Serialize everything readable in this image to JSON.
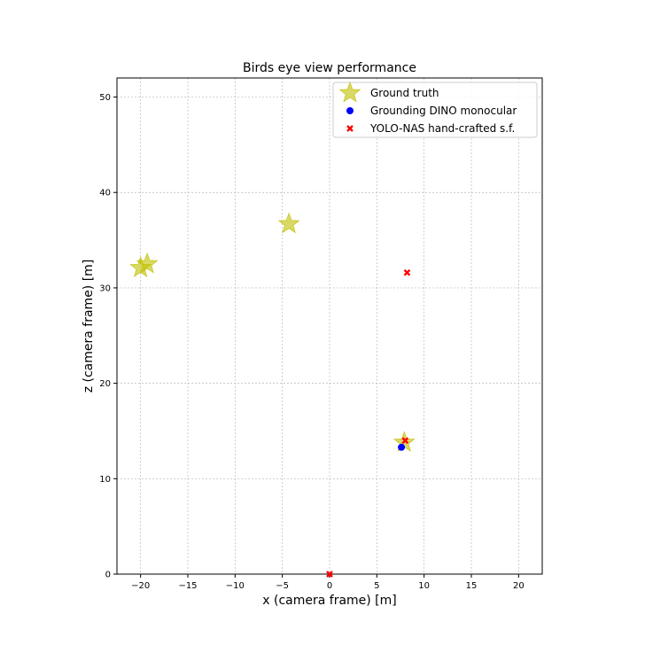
{
  "chart_data": {
    "type": "scatter",
    "title": "Birds eye view performance",
    "xlabel": "x (camera frame) [m]",
    "ylabel": "z (camera frame) [m]",
    "xlim": [
      -22.5,
      22.5
    ],
    "ylim": [
      0,
      52
    ],
    "xticks": [
      -20,
      -15,
      -10,
      -5,
      0,
      5,
      10,
      15,
      20
    ],
    "yticks": [
      0,
      10,
      20,
      30,
      40,
      50
    ],
    "grid": true,
    "legend_position": "top-right",
    "series": [
      {
        "name": "Ground truth",
        "marker": "star",
        "color": "#bfbf00",
        "points": [
          {
            "x": -20.0,
            "y": 32.1
          },
          {
            "x": -19.3,
            "y": 32.5
          },
          {
            "x": -4.3,
            "y": 36.7
          },
          {
            "x": 7.9,
            "y": 13.8
          }
        ]
      },
      {
        "name": "Grounding DINO monocular",
        "marker": "circle",
        "color": "#0000ff",
        "points": [
          {
            "x": 7.6,
            "y": 13.3
          }
        ]
      },
      {
        "name": "YOLO-NAS hand-crafted s.f.",
        "marker": "x",
        "color": "#ff0000",
        "points": [
          {
            "x": 8.2,
            "y": 31.6
          },
          {
            "x": 8.0,
            "y": 14.0
          },
          {
            "x": 0.0,
            "y": 0.0
          }
        ]
      }
    ]
  }
}
